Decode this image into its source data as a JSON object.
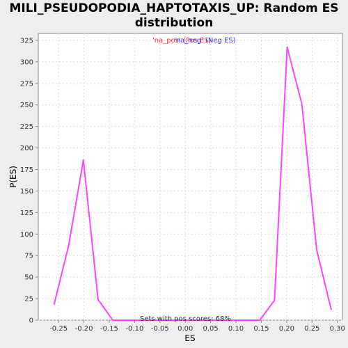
{
  "chart_data": {
    "type": "line",
    "title_line1": "MILI_PSEUDOPODIA_HAPTOTAXIS_UP: Random ES",
    "title_line2": "distribution",
    "xlabel": "ES",
    "ylabel": "P(ES)",
    "xlim": [
      -0.29,
      0.31
    ],
    "ylim": [
      0,
      333
    ],
    "xticks": [
      -0.25,
      -0.2,
      -0.15,
      -0.1,
      -0.05,
      0.0,
      0.05,
      0.1,
      0.15,
      0.2,
      0.25,
      0.3
    ],
    "xtick_labels": [
      "-0.25",
      "-0.20",
      "-0.15",
      "-0.10",
      "-0.05",
      "0.00",
      "0.05",
      "0.10",
      "0.15",
      "0.20",
      "0.25",
      "0.30"
    ],
    "yticks": [
      0,
      25,
      50,
      75,
      100,
      125,
      150,
      175,
      200,
      225,
      250,
      275,
      300,
      325
    ],
    "grid": true,
    "series": [
      {
        "name": "Random ES",
        "color": "#ff44ff",
        "x": [
          -0.259,
          -0.23,
          -0.201,
          -0.172,
          -0.143,
          -0.114,
          -0.085,
          -0.056,
          -0.027,
          0.002,
          0.031,
          0.06,
          0.089,
          0.118,
          0.147,
          0.176,
          0.201,
          0.23,
          0.259,
          0.288
        ],
        "y": [
          18,
          87,
          186,
          24,
          0,
          0,
          0,
          0,
          0,
          0,
          0,
          0,
          0,
          0,
          0,
          23,
          317,
          251,
          82,
          12
        ]
      }
    ],
    "legend": {
      "placement": "top-center",
      "pos_label": "'na_pos' (Pos ES)",
      "neg_label": "'na_neg' (Neg ES)",
      "pos_color": "#ff3333",
      "neg_color": "#3333ff"
    },
    "annotation": "Sets with pos scores: 68%"
  }
}
